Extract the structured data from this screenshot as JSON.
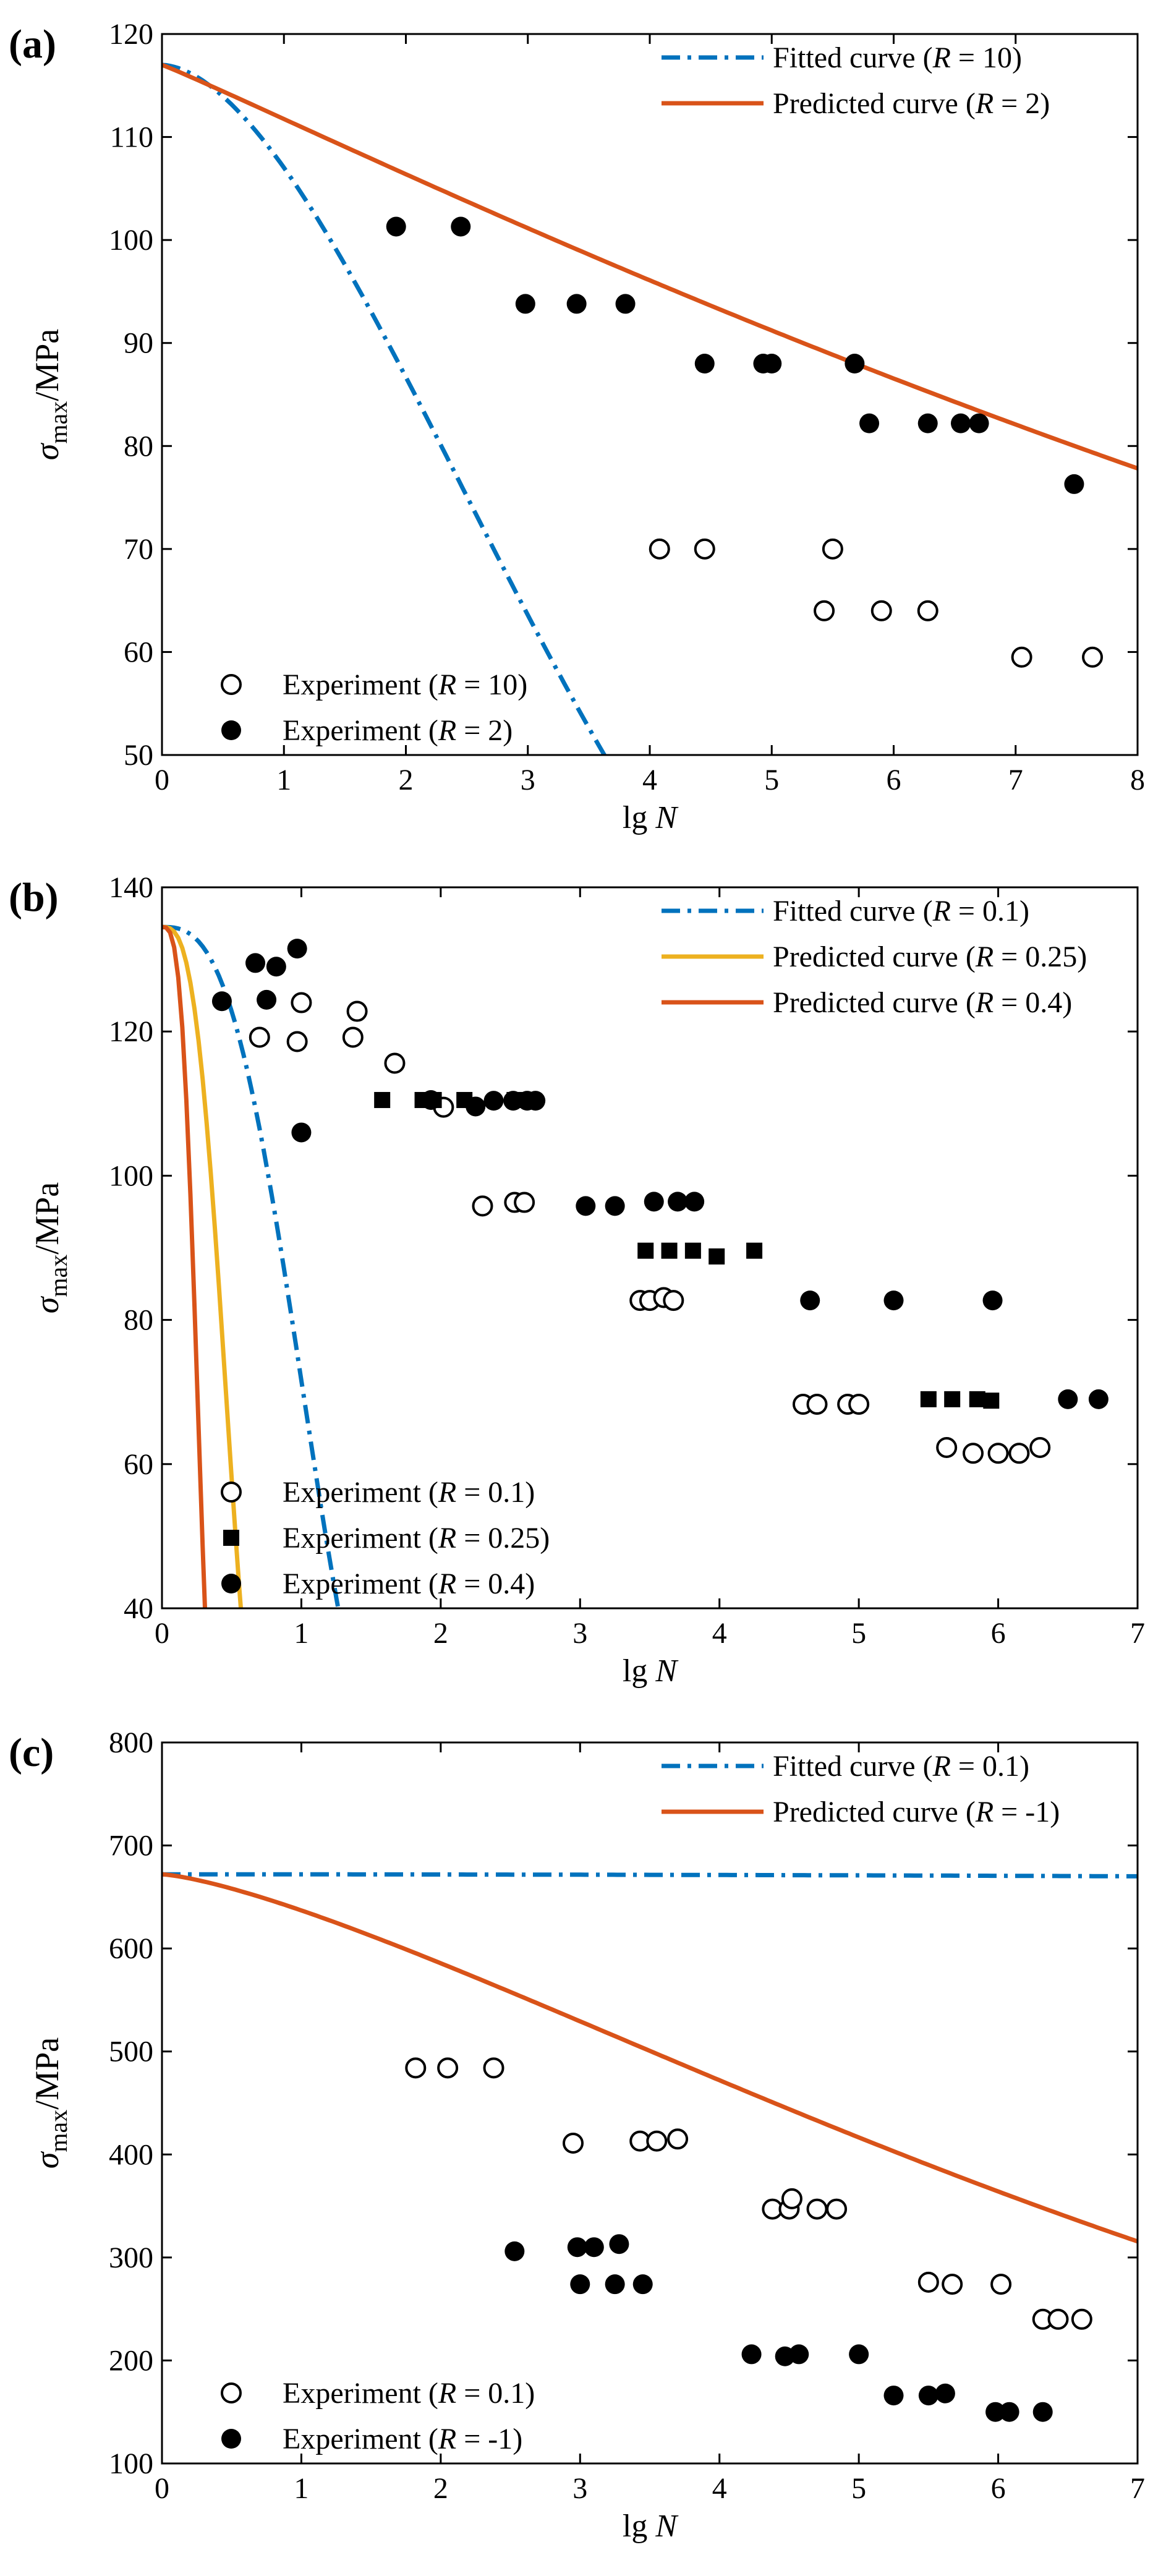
{
  "chart_data": [
    {
      "panel_label": "(a)",
      "type": "scatter+line",
      "xlabel_prefix": "lg ",
      "xlabel_var": "N",
      "ylabel_sym": "σ",
      "ylabel_sub": "max",
      "ylabel_unit": "/MPa",
      "xlim": [
        0,
        8
      ],
      "ylim": [
        50,
        120
      ],
      "xticks": [
        0,
        1,
        2,
        3,
        4,
        5,
        6,
        7,
        8
      ],
      "yticks": [
        50,
        60,
        70,
        80,
        90,
        100,
        110,
        120
      ],
      "lines": [
        {
          "label_pre": "Fitted curve (",
          "label_var": "R",
          "label_post": " = 10)",
          "color": "#0072BD",
          "dash": "dashdot",
          "a": 117,
          "b": 0.0,
          "c": 3.98,
          "d": 1.75
        },
        {
          "label_pre": "Predicted curve (",
          "label_var": "R",
          "label_post": " = 2)",
          "color": "#D95319",
          "dash": "solid",
          "a": 117,
          "b": 0.0,
          "c": 18.8,
          "d": 1.05
        }
      ],
      "scatter": [
        {
          "label_pre": "Experiment (",
          "label_var": "R",
          "label_post": " = 10)",
          "marker": "open-circle",
          "points": [
            [
              4.08,
              70
            ],
            [
              4.45,
              70
            ],
            [
              5.43,
              64
            ],
            [
              5.5,
              70
            ],
            [
              5.9,
              64
            ],
            [
              6.28,
              64
            ],
            [
              7.05,
              59.5
            ],
            [
              7.63,
              59.5
            ]
          ]
        },
        {
          "label_pre": "Experiment (",
          "label_var": "R",
          "label_post": " = 2)",
          "marker": "filled-circle",
          "points": [
            [
              1.92,
              101.3
            ],
            [
              2.45,
              101.3
            ],
            [
              2.98,
              93.8
            ],
            [
              3.4,
              93.8
            ],
            [
              3.8,
              93.8
            ],
            [
              4.45,
              88
            ],
            [
              4.93,
              88
            ],
            [
              5.0,
              88
            ],
            [
              5.68,
              88
            ],
            [
              5.8,
              82.2
            ],
            [
              6.28,
              82.2
            ],
            [
              6.55,
              82.2
            ],
            [
              6.7,
              82.2
            ],
            [
              7.48,
              76.3
            ]
          ]
        }
      ]
    },
    {
      "panel_label": "(b)",
      "type": "scatter+line",
      "xlabel_prefix": "lg ",
      "xlabel_var": "N",
      "ylabel_sym": "σ",
      "ylabel_sub": "max",
      "ylabel_unit": "/MPa",
      "xlim": [
        0,
        7
      ],
      "ylim": [
        40,
        140
      ],
      "xticks": [
        0,
        1,
        2,
        3,
        4,
        5,
        6,
        7
      ],
      "yticks": [
        40,
        60,
        80,
        100,
        120,
        140
      ],
      "lines": [
        {
          "label_pre": "Fitted curve (",
          "label_var": "R",
          "label_post": " = 0.1)",
          "color": "#0072BD",
          "dash": "dashdot",
          "a": 134.5,
          "b": 0.0,
          "c": 1.18,
          "d": 2.79
        },
        {
          "label_pre": "Predicted curve (",
          "label_var": "R",
          "label_post": " = 0.25)",
          "color": "#EDB120",
          "dash": "solid",
          "a": 134.5,
          "b": 0.0,
          "c": 0.53,
          "d": 2.96
        },
        {
          "label_pre": "Predicted curve (",
          "label_var": "R",
          "label_post": " = 0.4)",
          "color": "#D95319",
          "dash": "solid",
          "a": 134.5,
          "b": 0.0,
          "c": 0.29,
          "d": 3.22
        }
      ],
      "scatter": [
        {
          "label_pre": "Experiment (",
          "label_var": "R",
          "label_post": " = 0.1)",
          "marker": "open-circle",
          "points": [
            [
              0.7,
              119.2
            ],
            [
              0.97,
              118.6
            ],
            [
              1.0,
              124
            ],
            [
              1.37,
              119.2
            ],
            [
              1.4,
              122.8
            ],
            [
              1.67,
              115.6
            ],
            [
              2.02,
              109.5
            ],
            [
              2.3,
              95.8
            ],
            [
              2.53,
              96.3
            ],
            [
              2.6,
              96.3
            ],
            [
              3.43,
              82.7
            ],
            [
              3.5,
              82.7
            ],
            [
              3.6,
              83.1
            ],
            [
              3.67,
              82.7
            ],
            [
              4.6,
              68.3
            ],
            [
              4.7,
              68.3
            ],
            [
              4.92,
              68.3
            ],
            [
              5.0,
              68.3
            ],
            [
              5.63,
              62.3
            ],
            [
              5.82,
              61.5
            ],
            [
              6.0,
              61.5
            ],
            [
              6.15,
              61.5
            ],
            [
              6.3,
              62.3
            ]
          ]
        },
        {
          "label_pre": "Experiment (",
          "label_var": "R",
          "label_post": " = 0.25)",
          "marker": "filled-square",
          "points": [
            [
              1.58,
              110.5
            ],
            [
              1.87,
              110.5
            ],
            [
              1.95,
              110.5
            ],
            [
              2.17,
              110.5
            ],
            [
              2.53,
              110.5
            ],
            [
              2.6,
              110.5
            ],
            [
              3.47,
              89.6
            ],
            [
              3.64,
              89.6
            ],
            [
              3.81,
              89.6
            ],
            [
              3.98,
              88.8
            ],
            [
              4.25,
              89.6
            ],
            [
              5.5,
              69
            ],
            [
              5.67,
              69
            ],
            [
              5.85,
              69
            ],
            [
              5.95,
              68.8
            ]
          ]
        },
        {
          "label_pre": "Experiment (",
          "label_var": "R",
          "label_post": " = 0.4)",
          "marker": "filled-circle",
          "points": [
            [
              0.43,
              124.2
            ],
            [
              0.67,
              129.5
            ],
            [
              0.75,
              124.4
            ],
            [
              0.82,
              129
            ],
            [
              0.97,
              131.5
            ],
            [
              1.0,
              106
            ],
            [
              1.93,
              110.5
            ],
            [
              2.25,
              109.6
            ],
            [
              2.38,
              110.4
            ],
            [
              2.52,
              110.4
            ],
            [
              2.62,
              110.4
            ],
            [
              2.68,
              110.4
            ],
            [
              3.04,
              95.8
            ],
            [
              3.25,
              95.8
            ],
            [
              3.53,
              96.4
            ],
            [
              3.7,
              96.4
            ],
            [
              3.82,
              96.4
            ],
            [
              4.65,
              82.7
            ],
            [
              5.25,
              82.7
            ],
            [
              5.96,
              82.7
            ],
            [
              6.5,
              69
            ],
            [
              6.72,
              69
            ]
          ]
        }
      ]
    },
    {
      "panel_label": "(c)",
      "type": "scatter+line",
      "xlabel_prefix": "lg ",
      "xlabel_var": "N",
      "ylabel_sym": "σ",
      "ylabel_sub": "max",
      "ylabel_unit": "/MPa",
      "xlim": [
        0,
        7
      ],
      "ylim": [
        100,
        800
      ],
      "xticks": [
        0,
        1,
        2,
        3,
        4,
        5,
        6,
        7
      ],
      "yticks": [
        100,
        200,
        300,
        400,
        500,
        600,
        700,
        800
      ],
      "lines": [
        {
          "label_pre": "Fitted curve (",
          "label_var": "R",
          "label_post": " = 0.1)",
          "color": "#0072BD",
          "dash": "dashdot",
          "a": 672,
          "b": 0.0,
          "c": 145,
          "d": 1.93
        },
        {
          "label_pre": "Predicted curve (",
          "label_var": "R",
          "label_post": " = -1)",
          "color": "#D95319",
          "dash": "solid",
          "a": 672,
          "b": 0.0,
          "c": 8.6,
          "d": 1.36
        }
      ],
      "scatter": [
        {
          "label_pre": "Experiment (",
          "label_var": "R",
          "label_post": " = 0.1)",
          "marker": "open-circle",
          "points": [
            [
              1.82,
              484
            ],
            [
              2.05,
              484
            ],
            [
              2.38,
              484
            ],
            [
              2.95,
              411
            ],
            [
              3.43,
              413
            ],
            [
              3.55,
              413
            ],
            [
              3.7,
              415
            ],
            [
              4.38,
              347
            ],
            [
              4.5,
              347
            ],
            [
              4.52,
              357
            ],
            [
              4.7,
              347
            ],
            [
              4.84,
              347
            ],
            [
              5.5,
              276
            ],
            [
              5.67,
              274
            ],
            [
              6.02,
              274
            ],
            [
              6.32,
              240
            ],
            [
              6.43,
              240
            ],
            [
              6.6,
              240
            ]
          ]
        },
        {
          "label_pre": "Experiment (",
          "label_var": "R",
          "label_post": " = -1)",
          "marker": "filled-circle",
          "points": [
            [
              2.53,
              306
            ],
            [
              2.98,
              310
            ],
            [
              3.0,
              274
            ],
            [
              3.1,
              310
            ],
            [
              3.25,
              274
            ],
            [
              3.28,
              313
            ],
            [
              3.45,
              274
            ],
            [
              4.23,
              206
            ],
            [
              4.47,
              204
            ],
            [
              4.57,
              206
            ],
            [
              5.0,
              206
            ],
            [
              5.25,
              166
            ],
            [
              5.5,
              166
            ],
            [
              5.62,
              168
            ],
            [
              5.98,
              150
            ],
            [
              6.08,
              150
            ],
            [
              6.32,
              150
            ]
          ]
        }
      ]
    }
  ]
}
